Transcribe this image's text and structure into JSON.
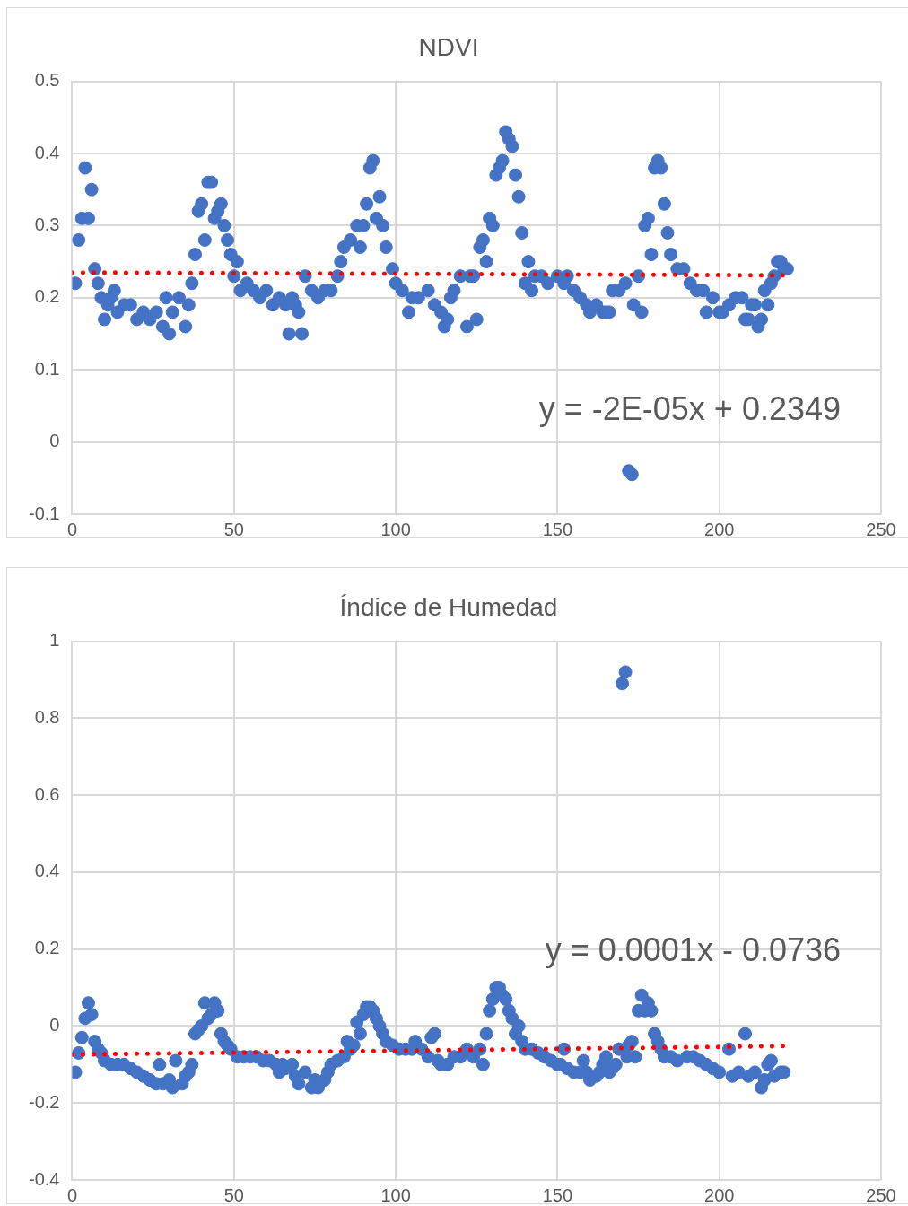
{
  "chart_data": [
    {
      "type": "scatter",
      "title": "NDVI",
      "xlim": [
        0,
        250
      ],
      "xticks": [
        0,
        50,
        100,
        150,
        200,
        250
      ],
      "ylim": [
        -0.1,
        0.5
      ],
      "yticks": [
        -0.1,
        0,
        0.1,
        0.2,
        0.3,
        0.4,
        0.5
      ],
      "grid": true,
      "legend": false,
      "annotations": [
        "y = -2E-05x + 0.2349"
      ],
      "series": [
        {
          "type": "scatter",
          "color": "#4472c4",
          "marker": "circle",
          "x": [
            1,
            2,
            3,
            4,
            5,
            6,
            7,
            8,
            9,
            10,
            11,
            12,
            13,
            14,
            16,
            18,
            20,
            22,
            24,
            26,
            28,
            29,
            30,
            31,
            33,
            35,
            36,
            37,
            38,
            39,
            40,
            41,
            42,
            43,
            44,
            45,
            46,
            47,
            48,
            49,
            50,
            51,
            52,
            54,
            56,
            58,
            60,
            62,
            64,
            66,
            67,
            68,
            69,
            70,
            71,
            72,
            74,
            76,
            78,
            80,
            82,
            83,
            84,
            86,
            88,
            89,
            90,
            91,
            92,
            93,
            94,
            95,
            96,
            97,
            99,
            100,
            102,
            104,
            105,
            107,
            110,
            112,
            114,
            115,
            116,
            117,
            118,
            120,
            122,
            123,
            124,
            125,
            126,
            127,
            128,
            129,
            130,
            131,
            132,
            133,
            134,
            135,
            136,
            137,
            138,
            139,
            140,
            141,
            142,
            143,
            145,
            147,
            150,
            152,
            153,
            155,
            157,
            159,
            160,
            162,
            164,
            165,
            166,
            167,
            169,
            171,
            172,
            173,
            173.5,
            175,
            176,
            177,
            178,
            179,
            180,
            181,
            182,
            183,
            184,
            185,
            187,
            189,
            191,
            193,
            195,
            196,
            198,
            200,
            201,
            203,
            205,
            207,
            208,
            209,
            210,
            211,
            212,
            213,
            214,
            215,
            216,
            217,
            218,
            219,
            220,
            221
          ],
          "values": [
            0.22,
            0.28,
            0.31,
            0.38,
            0.31,
            0.35,
            0.24,
            0.22,
            0.2,
            0.17,
            0.19,
            0.2,
            0.21,
            0.18,
            0.19,
            0.19,
            0.17,
            0.18,
            0.17,
            0.18,
            0.16,
            0.2,
            0.15,
            0.18,
            0.2,
            0.16,
            0.19,
            0.22,
            0.26,
            0.32,
            0.33,
            0.28,
            0.36,
            0.36,
            0.31,
            0.32,
            0.33,
            0.3,
            0.28,
            0.26,
            0.23,
            0.25,
            0.21,
            0.22,
            0.21,
            0.2,
            0.21,
            0.19,
            0.2,
            0.19,
            0.15,
            0.2,
            0.19,
            0.18,
            0.15,
            0.23,
            0.21,
            0.2,
            0.21,
            0.21,
            0.23,
            0.25,
            0.27,
            0.28,
            0.3,
            0.27,
            0.3,
            0.33,
            0.38,
            0.39,
            0.31,
            0.34,
            0.3,
            0.27,
            0.24,
            0.22,
            0.21,
            0.18,
            0.2,
            0.2,
            0.21,
            0.19,
            0.18,
            0.16,
            0.17,
            0.2,
            0.21,
            0.23,
            0.16,
            0.23,
            0.23,
            0.17,
            0.27,
            0.28,
            0.25,
            0.31,
            0.3,
            0.37,
            0.38,
            0.39,
            0.43,
            0.42,
            0.41,
            0.37,
            0.34,
            0.29,
            0.22,
            0.25,
            0.21,
            0.23,
            0.23,
            0.22,
            0.23,
            0.22,
            0.23,
            0.21,
            0.2,
            0.19,
            0.18,
            0.19,
            0.18,
            0.18,
            0.18,
            0.21,
            0.21,
            0.22,
            -0.04,
            -0.045,
            0.19,
            0.23,
            0.18,
            0.3,
            0.31,
            0.26,
            0.38,
            0.39,
            0.38,
            0.33,
            0.29,
            0.26,
            0.24,
            0.24,
            0.22,
            0.21,
            0.21,
            0.18,
            0.2,
            0.18,
            0.18,
            0.19,
            0.2,
            0.2,
            0.17,
            0.17,
            0.19,
            0.19,
            0.16,
            0.17,
            0.21,
            0.19,
            0.22,
            0.23,
            0.25,
            0.25,
            0.24,
            0.24
          ]
        },
        {
          "type": "line",
          "color": "#ff0000",
          "line_style": "dotted",
          "marker": "none",
          "x": [
            0,
            221
          ],
          "values": [
            0.235,
            0.231
          ]
        }
      ]
    },
    {
      "type": "scatter",
      "title": "Índice de Humedad",
      "xlim": [
        0,
        250
      ],
      "xticks": [
        0,
        50,
        100,
        150,
        200,
        250
      ],
      "ylim": [
        -0.4,
        1
      ],
      "yticks": [
        -0.4,
        -0.2,
        0,
        0.2,
        0.4,
        0.6,
        0.8,
        1
      ],
      "grid": true,
      "legend": false,
      "annotations": [
        "y = 0.0001x - 0.0736"
      ],
      "series": [
        {
          "type": "scatter",
          "color": "#4472c4",
          "marker": "circle",
          "x": [
            1,
            2,
            3,
            4,
            5,
            6,
            7,
            8,
            9,
            10,
            12,
            14,
            16,
            18,
            20,
            22,
            24,
            26,
            27,
            28,
            30,
            31,
            32,
            34,
            35,
            36,
            37,
            38,
            39,
            40,
            41,
            42,
            43,
            44,
            45,
            46,
            47,
            48,
            49,
            51,
            53,
            55,
            57,
            59,
            61,
            63,
            64,
            65,
            66,
            68,
            69,
            70,
            72,
            74,
            75,
            76,
            78,
            79,
            80,
            82,
            84,
            85,
            86,
            87,
            88,
            89,
            90,
            91,
            92,
            93,
            94,
            95,
            96,
            97,
            99,
            101,
            103,
            105,
            106,
            108,
            110,
            111,
            112,
            113,
            114,
            116,
            118,
            120,
            122,
            124,
            126,
            127,
            128,
            129,
            130,
            131,
            132,
            133,
            134,
            135,
            136,
            137,
            138,
            139,
            140,
            142,
            144,
            146,
            148,
            150,
            151,
            152,
            153,
            155,
            157,
            158,
            159,
            160,
            162,
            163,
            164,
            165,
            166,
            167,
            168,
            169,
            170,
            171,
            171.5,
            172,
            173,
            174,
            175,
            176,
            177,
            178,
            179,
            180,
            181,
            182,
            183,
            185,
            187,
            190,
            192,
            194,
            196,
            198,
            200,
            203,
            204,
            206,
            208,
            209,
            211,
            213,
            214,
            215,
            216,
            217,
            219,
            220
          ],
          "values": [
            -0.12,
            -0.07,
            -0.03,
            0.02,
            0.06,
            0.03,
            -0.04,
            -0.06,
            -0.07,
            -0.09,
            -0.1,
            -0.1,
            -0.1,
            -0.11,
            -0.12,
            -0.13,
            -0.14,
            -0.15,
            -0.1,
            -0.15,
            -0.14,
            -0.16,
            -0.09,
            -0.15,
            -0.13,
            -0.12,
            -0.1,
            -0.02,
            -0.01,
            0,
            0.06,
            0.02,
            0.03,
            0.06,
            0.04,
            -0.02,
            -0.04,
            -0.05,
            -0.06,
            -0.08,
            -0.08,
            -0.08,
            -0.08,
            -0.09,
            -0.09,
            -0.1,
            -0.12,
            -0.1,
            -0.11,
            -0.1,
            -0.13,
            -0.15,
            -0.12,
            -0.16,
            -0.14,
            -0.16,
            -0.14,
            -0.12,
            -0.1,
            -0.09,
            -0.08,
            -0.04,
            -0.06,
            -0.05,
            0.01,
            -0.02,
            0.03,
            0.05,
            0.05,
            0.04,
            0.02,
            0,
            -0.02,
            -0.04,
            -0.05,
            -0.06,
            -0.06,
            -0.06,
            -0.04,
            -0.06,
            -0.08,
            -0.03,
            -0.02,
            -0.09,
            -0.1,
            -0.1,
            -0.08,
            -0.08,
            -0.06,
            -0.08,
            -0.06,
            -0.1,
            -0.02,
            0.04,
            0.07,
            0.1,
            0.1,
            0.08,
            0.07,
            0.04,
            0.02,
            -0.02,
            0,
            -0.04,
            -0.06,
            -0.06,
            -0.07,
            -0.08,
            -0.09,
            -0.1,
            -0.1,
            -0.06,
            -0.11,
            -0.12,
            -0.12,
            -0.09,
            -0.12,
            -0.14,
            -0.13,
            -0.12,
            -0.1,
            -0.08,
            -0.12,
            -0.11,
            -0.1,
            -0.06,
            0.89,
            0.92,
            -0.08,
            -0.05,
            -0.04,
            -0.08,
            0.04,
            0.08,
            0.04,
            0.06,
            0.04,
            -0.02,
            -0.04,
            -0.06,
            -0.08,
            -0.08,
            -0.09,
            -0.08,
            -0.08,
            -0.09,
            -0.1,
            -0.11,
            -0.12,
            -0.06,
            -0.13,
            -0.12,
            -0.02,
            -0.13,
            -0.12,
            -0.16,
            -0.14,
            -0.1,
            -0.09,
            -0.13,
            -0.12,
            -0.12
          ]
        },
        {
          "type": "line",
          "color": "#ff0000",
          "line_style": "dotted",
          "marker": "none",
          "x": [
            0,
            220
          ],
          "values": [
            -0.074,
            -0.052
          ]
        }
      ]
    }
  ]
}
